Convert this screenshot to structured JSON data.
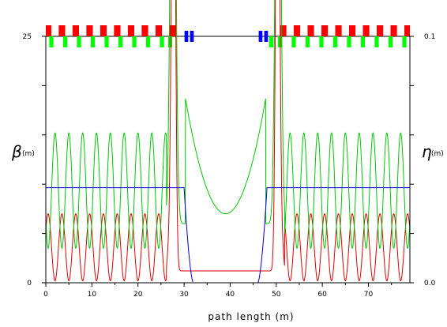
{
  "chart_data": {
    "type": "line",
    "title": "",
    "xlabel": "path length (m)",
    "ylabel_left": {
      "symbol": "β",
      "unit": "(m)"
    },
    "ylabel_right": {
      "symbol": "η",
      "unit": "(m)"
    },
    "xlim": [
      0,
      79
    ],
    "ylim_left": [
      0,
      25
    ],
    "ylim_right": [
      0.0,
      0.1
    ],
    "x_ticks": [
      "0",
      "10",
      "20",
      "30",
      "40",
      "50",
      "60",
      "70"
    ],
    "left_ticks": [
      "0",
      "25"
    ],
    "right_ticks": [
      "0.0",
      "0.1"
    ],
    "grid": false,
    "legend": "none",
    "colors": {
      "beta_x": "#e00000",
      "beta_y": "#00c800",
      "dispersion": "#0000e0",
      "dipole": "#ff0000",
      "quad": "#00ff00",
      "special_magnet": "#0000ff",
      "axes": "#000000"
    },
    "magnet_lattice": {
      "dipole_centers": [
        0.5,
        3.5,
        6.5,
        9.5,
        12.5,
        15.5,
        18.5,
        21.5,
        24.5,
        27.5,
        51.5,
        54.5,
        57.5,
        60.5,
        63.5,
        66.5,
        69.5,
        72.5,
        75.5,
        78.5
      ],
      "dipole_length": 1.4,
      "quad_centers": [
        1.2,
        4.2,
        7.2,
        10.2,
        13.2,
        16.2,
        19.2,
        22.2,
        25.2,
        27.0,
        48.9,
        50.8,
        53.8,
        56.8,
        59.8,
        62.8,
        65.8,
        68.8,
        71.8,
        74.8,
        77.8
      ],
      "quad_length": 0.9,
      "special_centers": [
        30.5,
        31.7,
        46.6,
        47.8
      ],
      "special_length": 0.8,
      "line_span": [
        29.0,
        49.0
      ]
    },
    "series": [
      {
        "id": "beta_x",
        "arc_period": 3.0,
        "arc_min": 0.2,
        "arc_max": 7.0,
        "arc_phase": 0.5,
        "arc_left_end": 26.2,
        "arc_right_start": 51.8
      },
      {
        "id": "beta_y",
        "arc_period": 3.0,
        "arc_min": 3.5,
        "arc_max": 15.2,
        "arc_phase": 2.0,
        "arc_left_end": 26.2,
        "arc_right_start": 51.8,
        "straight_peak": 19.5,
        "straight_min": 7.0,
        "straight_center": 39.0,
        "straight_edges": [
          30.0,
          48.0
        ]
      },
      {
        "id": "dispersion",
        "axis": "right",
        "arc_value": 0.0386,
        "arc_spans": [
          [
            0,
            30.0
          ],
          [
            48.0,
            79
          ]
        ],
        "drop_to_zero": [
          [
            30.0,
            32.0
          ],
          [
            46.0,
            48.0
          ]
        ]
      }
    ]
  }
}
